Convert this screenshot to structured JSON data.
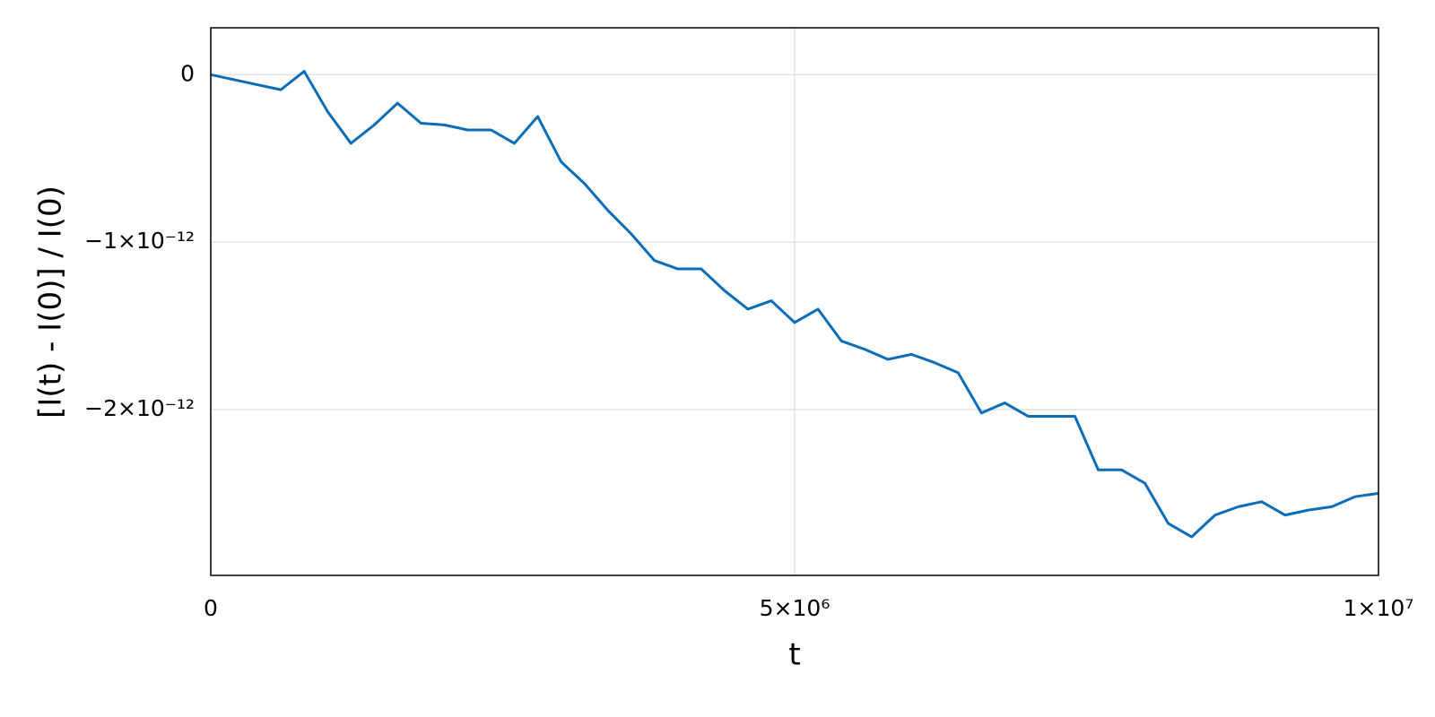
{
  "chart_data": {
    "type": "line",
    "xlabel": "t",
    "ylabel": "[I(t) - I(0)] / I(0)",
    "color": "#0b6db7",
    "grid": true,
    "xlim": [
      0,
      10000000
    ],
    "ylim": [
      -2.99e-12,
      2.8e-13
    ],
    "xticks": [
      0,
      {
        "value": 5000000,
        "label": "5×10⁶"
      },
      {
        "value": 10000000,
        "label": "1×10⁷"
      }
    ],
    "yticks": [
      0,
      {
        "value": -1e-12,
        "label": "−1×10⁻¹²"
      },
      {
        "value": -2e-12,
        "label": "−2×10⁻¹²"
      }
    ],
    "x": [
      0,
      200000,
      400000,
      600000,
      800000,
      1000000,
      1200000,
      1400000,
      1600000,
      1800000,
      2000000,
      2200000,
      2400000,
      2600000,
      2800000,
      3000000,
      3200000,
      3400000,
      3600000,
      3800000,
      4000000,
      4200000,
      4400000,
      4600000,
      4800000,
      5000000,
      5200000,
      5400000,
      5600000,
      5800000,
      6000000,
      6200000,
      6400000,
      6600000,
      6800000,
      7000000,
      7200000,
      7400000,
      7600000,
      7800000,
      8000000,
      8200000,
      8400000,
      8600000,
      8800000,
      9000000,
      9200000,
      9400000,
      9600000,
      9800000,
      10000000
    ],
    "values": [
      0,
      -3e-14,
      -6e-14,
      -9e-14,
      2e-14,
      -2.2e-13,
      -4.1e-13,
      -3e-13,
      -1.7e-13,
      -2.9e-13,
      -3e-13,
      -3.3e-13,
      -3.3e-13,
      -4.1e-13,
      -2.5e-13,
      -5.2e-13,
      -6.5e-13,
      -8.1e-13,
      -9.5e-13,
      -1.11e-12,
      -1.16e-12,
      -1.16e-12,
      -1.29e-12,
      -1.4e-12,
      -1.35e-12,
      -1.48e-12,
      -1.4e-12,
      -1.59e-12,
      -1.64e-12,
      -1.7e-12,
      -1.67e-12,
      -1.72e-12,
      -1.78e-12,
      -2.02e-12,
      -1.96e-12,
      -2.04e-12,
      -2.04e-12,
      -2.04e-12,
      -2.36e-12,
      -2.36e-12,
      -2.44e-12,
      -2.68e-12,
      -2.76e-12,
      -2.63e-12,
      -2.58e-12,
      -2.55e-12,
      -2.63e-12,
      -2.6e-12,
      -2.58e-12,
      -2.52e-12,
      -2.5e-12
    ]
  }
}
